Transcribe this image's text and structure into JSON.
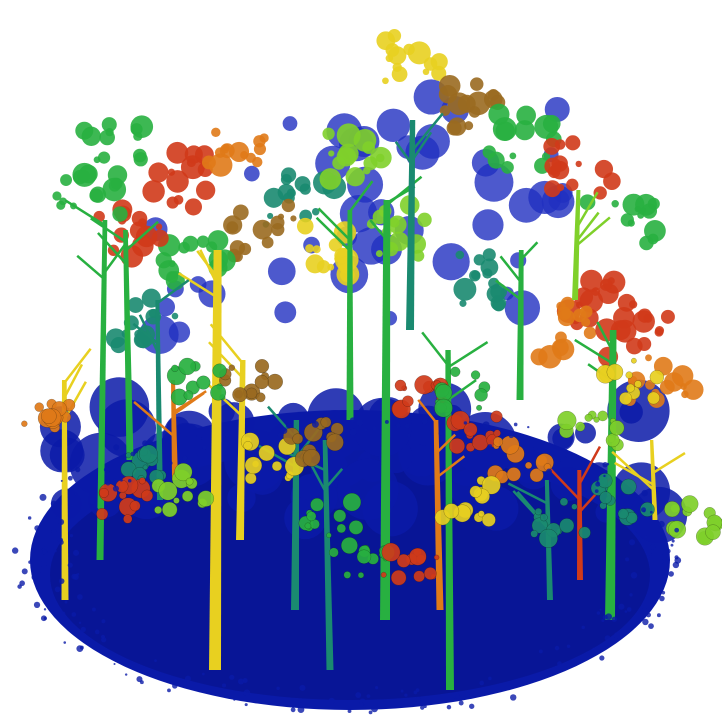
{
  "scene": {
    "description_free": true,
    "background": "#ffffff",
    "palette": {
      "ground": "#0a1aa8",
      "ground_dark": "#061080",
      "blue_leaf": "#2030c0",
      "teal": "#1a8a70",
      "green": "#28b040",
      "lime": "#7fd02a",
      "yellow": "#e8d020",
      "orange": "#e07a18",
      "red": "#d03a1a",
      "brown": "#9a6a20"
    },
    "trunks": [
      {
        "color": "yellow",
        "angle_hint": "vertical"
      },
      {
        "color": "green",
        "angle_hint": "vertical"
      },
      {
        "color": "teal",
        "angle_hint": "vertical"
      },
      {
        "color": "orange",
        "angle_hint": "vertical"
      },
      {
        "color": "lime",
        "angle_hint": "vertical"
      },
      {
        "color": "red",
        "angle_hint": "vertical"
      }
    ],
    "crowns": [
      {
        "color": "green"
      },
      {
        "color": "red"
      },
      {
        "color": "orange"
      },
      {
        "color": "teal"
      },
      {
        "color": "blue_leaf"
      },
      {
        "color": "lime"
      },
      {
        "color": "yellow"
      },
      {
        "color": "brown"
      }
    ]
  }
}
